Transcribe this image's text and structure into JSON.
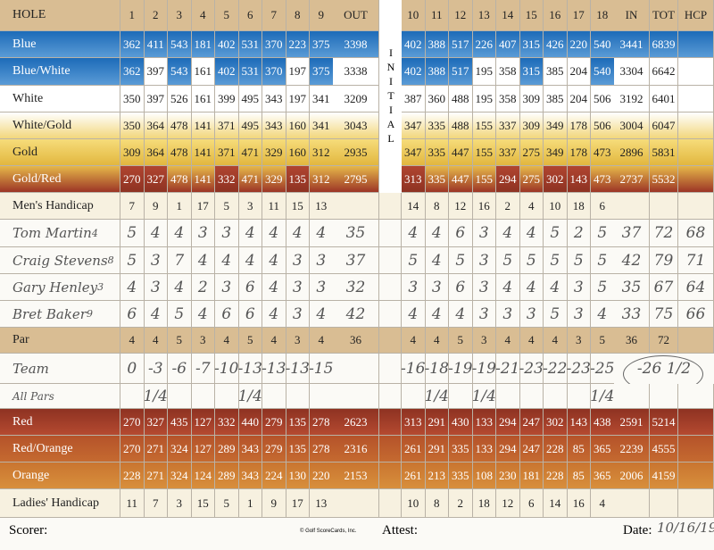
{
  "header": {
    "hole": "HOLE",
    "front": [
      "1",
      "2",
      "3",
      "4",
      "5",
      "6",
      "7",
      "8",
      "9"
    ],
    "out": "OUT",
    "initial": "INITIAL",
    "back": [
      "10",
      "11",
      "12",
      "13",
      "14",
      "15",
      "16",
      "17",
      "18"
    ],
    "in": "IN",
    "tot": "TOT",
    "hcp": "HCP"
  },
  "rows": [
    {
      "label": "Blue",
      "front": [
        "362",
        "411",
        "543",
        "181",
        "402",
        "531",
        "370",
        "223",
        "375"
      ],
      "out": "3398",
      "back": [
        "402",
        "388",
        "517",
        "226",
        "407",
        "315",
        "426",
        "220",
        "540"
      ],
      "in": "3441",
      "tot": "6839"
    },
    {
      "label": "Blue/White",
      "front": [
        "362",
        "397",
        "543",
        "161",
        "402",
        "531",
        "370",
        "197",
        "375"
      ],
      "out": "3338",
      "back": [
        "402",
        "388",
        "517",
        "195",
        "358",
        "315",
        "385",
        "204",
        "540"
      ],
      "in": "3304",
      "tot": "6642"
    },
    {
      "label": "White",
      "front": [
        "350",
        "397",
        "526",
        "161",
        "399",
        "495",
        "343",
        "197",
        "341"
      ],
      "out": "3209",
      "back": [
        "387",
        "360",
        "488",
        "195",
        "358",
        "309",
        "385",
        "204",
        "506"
      ],
      "in": "3192",
      "tot": "6401"
    },
    {
      "label": "White/Gold",
      "front": [
        "350",
        "364",
        "478",
        "141",
        "371",
        "495",
        "343",
        "160",
        "341"
      ],
      "out": "3043",
      "back": [
        "347",
        "335",
        "488",
        "155",
        "337",
        "309",
        "349",
        "178",
        "506"
      ],
      "in": "3004",
      "tot": "6047"
    },
    {
      "label": "Gold",
      "front": [
        "309",
        "364",
        "478",
        "141",
        "371",
        "471",
        "329",
        "160",
        "312"
      ],
      "out": "2935",
      "back": [
        "347",
        "335",
        "447",
        "155",
        "337",
        "275",
        "349",
        "178",
        "473"
      ],
      "in": "2896",
      "tot": "5831"
    },
    {
      "label": "Gold/Red",
      "front": [
        "270",
        "327",
        "478",
        "141",
        "332",
        "471",
        "329",
        "135",
        "312"
      ],
      "out": "2795",
      "back": [
        "313",
        "335",
        "447",
        "155",
        "294",
        "275",
        "302",
        "143",
        "473"
      ],
      "in": "2737",
      "tot": "5532"
    },
    {
      "label": "Men's Handicap",
      "front": [
        "7",
        "9",
        "1",
        "17",
        "5",
        "3",
        "11",
        "15",
        "13"
      ],
      "back": [
        "14",
        "8",
        "12",
        "16",
        "2",
        "4",
        "10",
        "18",
        "6"
      ]
    },
    {
      "label": "Tom Martin",
      "handicap": "4",
      "front": [
        "5",
        "4",
        "4",
        "3",
        "3",
        "4",
        "4",
        "4",
        "4"
      ],
      "out": "35",
      "back": [
        "4",
        "4",
        "6",
        "3",
        "4",
        "4",
        "5",
        "2",
        "5"
      ],
      "in": "37",
      "tot": "72",
      "hcp": "68"
    },
    {
      "label": "Craig Stevens",
      "handicap": "8",
      "front": [
        "5",
        "3",
        "7",
        "4",
        "4",
        "4",
        "4",
        "3",
        "3"
      ],
      "out": "37",
      "back": [
        "5",
        "4",
        "5",
        "3",
        "5",
        "5",
        "5",
        "5",
        "5"
      ],
      "in": "42",
      "tot": "79",
      "hcp": "71"
    },
    {
      "label": "Gary Henley",
      "handicap": "3",
      "front": [
        "4",
        "3",
        "4",
        "2",
        "3",
        "6",
        "4",
        "3",
        "3"
      ],
      "out": "32",
      "back": [
        "3",
        "3",
        "6",
        "3",
        "4",
        "4",
        "4",
        "3",
        "5"
      ],
      "in": "35",
      "tot": "67",
      "hcp": "64"
    },
    {
      "label": "Bret Baker",
      "handicap": "9",
      "front": [
        "6",
        "4",
        "5",
        "4",
        "6",
        "6",
        "4",
        "3",
        "4"
      ],
      "out": "42",
      "back": [
        "4",
        "4",
        "4",
        "3",
        "3",
        "3",
        "5",
        "3",
        "4"
      ],
      "in": "33",
      "tot": "75",
      "hcp": "66"
    },
    {
      "label": "Par",
      "front": [
        "4",
        "4",
        "5",
        "3",
        "4",
        "5",
        "4",
        "3",
        "4"
      ],
      "out": "36",
      "back": [
        "4",
        "4",
        "5",
        "3",
        "4",
        "4",
        "4",
        "3",
        "5"
      ],
      "in": "36",
      "tot": "72"
    },
    {
      "label": "Team",
      "front": [
        "0",
        "-3",
        "-6",
        "-7",
        "-10",
        "-13",
        "-13",
        "-13",
        "-15"
      ],
      "back": [
        "-16",
        "-18",
        "-19",
        "-19",
        "-21",
        "-23",
        "-22",
        "-23",
        "-25"
      ],
      "total": "-26 1/2"
    },
    {
      "label": "All Pars",
      "front": [
        null,
        "1/4",
        null,
        null,
        null,
        "1/4",
        null,
        null,
        null
      ],
      "back": [
        null,
        "1/4",
        null,
        "1/4",
        null,
        null,
        null,
        null,
        "1/4"
      ]
    },
    {
      "label": "Red",
      "front": [
        "270",
        "327",
        "435",
        "127",
        "332",
        "440",
        "279",
        "135",
        "278"
      ],
      "out": "2623",
      "back": [
        "313",
        "291",
        "430",
        "133",
        "294",
        "247",
        "302",
        "143",
        "438"
      ],
      "in": "2591",
      "tot": "5214"
    },
    {
      "label": "Red/Orange",
      "front": [
        "270",
        "271",
        "324",
        "127",
        "289",
        "343",
        "279",
        "135",
        "278"
      ],
      "out": "2316",
      "back": [
        "261",
        "291",
        "335",
        "133",
        "294",
        "247",
        "228",
        "85",
        "365"
      ],
      "in": "2239",
      "tot": "4555"
    },
    {
      "label": "Orange",
      "front": [
        "228",
        "271",
        "324",
        "124",
        "289",
        "343",
        "224",
        "130",
        "220"
      ],
      "out": "2153",
      "back": [
        "261",
        "213",
        "335",
        "108",
        "230",
        "181",
        "228",
        "85",
        "365"
      ],
      "in": "2006",
      "tot": "4159"
    },
    {
      "label": "Ladies' Handicap",
      "front": [
        "11",
        "7",
        "3",
        "15",
        "5",
        "1",
        "9",
        "17",
        "13"
      ],
      "back": [
        "10",
        "8",
        "2",
        "18",
        "12",
        "6",
        "14",
        "16",
        "4"
      ]
    }
  ],
  "footer": {
    "scorer": "Scorer:",
    "copyright": "© Golf ScoreCards, Inc.",
    "attest": "Attest:",
    "date_label": "Date:",
    "date": "10/16/19"
  }
}
